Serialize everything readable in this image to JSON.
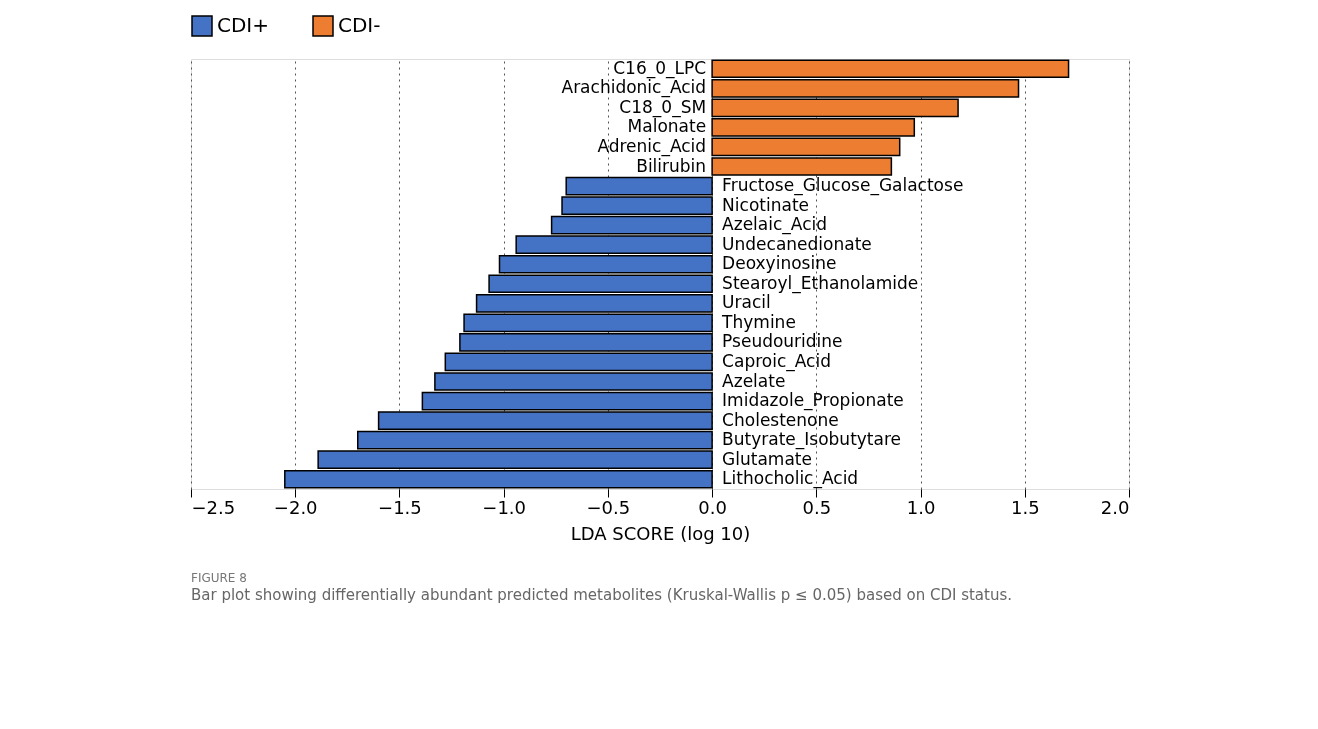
{
  "chart_data": {
    "type": "bar",
    "orientation": "horizontal",
    "categories": [
      "C16_0_LPC",
      "Arachidonic_Acid",
      "C18_0_SM",
      "Malonate",
      "Adrenic_Acid",
      "Bilirubin",
      "Fructose_Glucose_Galactose",
      "Nicotinate",
      "Azelaic_Acid",
      "Undecanedionate",
      "Deoxyinosine",
      "Stearoyl_Ethanolamide",
      "Uracil",
      "Thymine",
      "Pseudouridine",
      "Caproic_Acid",
      "Azelate",
      "Imidazole_Propionate",
      "Cholestenone",
      "Butyrate_Isobutytare",
      "Glutamate",
      "Lithocholic_Acid"
    ],
    "series": [
      {
        "name": "CDI+",
        "color": "#4472c4",
        "values": [
          null,
          null,
          null,
          null,
          null,
          null,
          -0.7,
          -0.72,
          -0.77,
          -0.94,
          -1.02,
          -1.07,
          -1.13,
          -1.19,
          -1.21,
          -1.28,
          -1.33,
          -1.39,
          -1.6,
          -1.7,
          -1.89,
          -2.05
        ]
      },
      {
        "name": "CDI-",
        "color": "#ed7d31",
        "values": [
          1.71,
          1.47,
          1.18,
          0.97,
          0.9,
          0.86,
          null,
          null,
          null,
          null,
          null,
          null,
          null,
          null,
          null,
          null,
          null,
          null,
          null,
          null,
          null,
          null
        ]
      }
    ],
    "xlabel": "LDA SCORE (log 10)",
    "xlim": [
      -2.5,
      2.0
    ],
    "xticks": [
      {
        "value": -2.5,
        "label": "−2.5"
      },
      {
        "value": -2,
        "label": "−2.0"
      },
      {
        "value": -1.5,
        "label": "−1.5"
      },
      {
        "value": -1,
        "label": "−1.0"
      },
      {
        "value": -0.5,
        "label": "−0.5"
      },
      {
        "value": 0,
        "label": "0.0"
      },
      {
        "value": 0.5,
        "label": "0.5"
      },
      {
        "value": 1,
        "label": "1.0"
      },
      {
        "value": 1.5,
        "label": "1.5"
      },
      {
        "value": 2,
        "label": "2.0"
      }
    ],
    "grid": "x",
    "legend": "top left",
    "annotations": [
      "FIGURE 8",
      "Bar plot showing differentially abundant predicted metabolites (Kruskal-Wallis p ≤ 0.05) based on CDI status."
    ]
  }
}
